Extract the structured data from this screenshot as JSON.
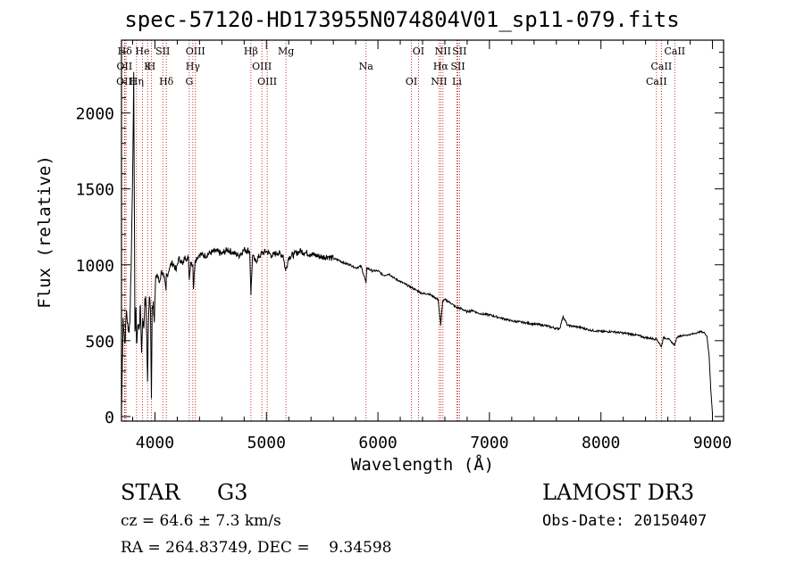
{
  "chart_data": {
    "type": "line",
    "title": "spec-57120-HD173955N074804V01_sp11-079.fits",
    "xlabel": "Wavelength (Å)",
    "ylabel": "Flux (relative)",
    "xlim": [
      3700,
      9100
    ],
    "ylim": [
      -30,
      2480
    ],
    "xticks": [
      4000,
      5000,
      6000,
      7000,
      8000,
      9000
    ],
    "yticks": [
      0,
      500,
      1000,
      1500,
      2000
    ],
    "series": [
      {
        "name": "spectrum",
        "x": [
          3700,
          3715,
          3730,
          3745,
          3760,
          3775,
          3790,
          3800,
          3810,
          3820,
          3830,
          3835,
          3845,
          3860,
          3870,
          3880,
          3890,
          3900,
          3910,
          3920,
          3930,
          3934,
          3940,
          3950,
          3960,
          3968,
          3975,
          3985,
          3995,
          4005,
          4020,
          4040,
          4060,
          4080,
          4100,
          4102,
          4110,
          4130,
          4150,
          4170,
          4190,
          4210,
          4230,
          4250,
          4270,
          4290,
          4300,
          4308,
          4320,
          4340,
          4345,
          4360,
          4380,
          4400,
          4450,
          4500,
          4550,
          4600,
          4650,
          4700,
          4750,
          4800,
          4850,
          4861,
          4875,
          4900,
          4950,
          5000,
          5050,
          5100,
          5150,
          5172,
          5200,
          5250,
          5300,
          5350,
          5400,
          5450,
          5500,
          5550,
          5600,
          5650,
          5700,
          5750,
          5800,
          5850,
          5893,
          5900,
          5950,
          6000,
          6050,
          6100,
          6150,
          6200,
          6250,
          6300,
          6350,
          6400,
          6450,
          6500,
          6540,
          6563,
          6580,
          6600,
          6650,
          6700,
          6750,
          6800,
          6850,
          6900,
          7000,
          7100,
          7200,
          7300,
          7400,
          7500,
          7600,
          7630,
          7660,
          7700,
          7800,
          7900,
          8000,
          8100,
          8200,
          8300,
          8400,
          8500,
          8542,
          8560,
          8600,
          8662,
          8680,
          8700,
          8750,
          8800,
          8850,
          8900,
          8930,
          8950,
          8970,
          8985,
          9000
        ],
        "values": [
          40,
          650,
          480,
          700,
          560,
          620,
          1130,
          1600,
          2270,
          560,
          720,
          480,
          600,
          590,
          730,
          420,
          650,
          580,
          780,
          740,
          360,
          230,
          600,
          790,
          700,
          120,
          720,
          760,
          620,
          900,
          940,
          880,
          960,
          920,
          830,
          940,
          930,
          980,
          1010,
          1000,
          960,
          1040,
          1030,
          1000,
          1060,
          1030,
          1050,
          900,
          1020,
          1000,
          840,
          1030,
          1050,
          1070,
          1060,
          1080,
          1090,
          1070,
          1100,
          1080,
          1060,
          1100,
          1090,
          800,
          1060,
          1020,
          1070,
          1090,
          1060,
          1080,
          1060,
          960,
          1050,
          1070,
          1090,
          1080,
          1070,
          1060,
          1050,
          1055,
          1040,
          1030,
          1010,
          1000,
          980,
          990,
          880,
          980,
          960,
          960,
          930,
          940,
          910,
          890,
          870,
          850,
          830,
          810,
          810,
          790,
          770,
          600,
          760,
          770,
          750,
          720,
          710,
          690,
          700,
          680,
          670,
          650,
          630,
          620,
          610,
          600,
          580,
          580,
          660,
          600,
          590,
          570,
          560,
          560,
          550,
          540,
          520,
          510,
          460,
          520,
          515,
          470,
          520,
          530,
          535,
          540,
          550,
          560,
          550,
          530,
          400,
          180,
          20
        ]
      }
    ],
    "line_marks": [
      {
        "label": "Hδ",
        "wave": 3730
      },
      {
        "label": "OII",
        "wave": 3727
      },
      {
        "label": "OIII",
        "wave": 3741
      },
      {
        "label": "He",
        "wave": 3888
      },
      {
        "label": "K",
        "wave": 3934
      },
      {
        "label": "Hη",
        "wave": 3835
      },
      {
        "label": "SII",
        "wave": 4070
      },
      {
        "label": "H",
        "wave": 3968
      },
      {
        "label": "Hδ",
        "wave": 4102
      },
      {
        "label": "OIII",
        "wave": 4363
      },
      {
        "label": "Hγ",
        "wave": 4340
      },
      {
        "label": "G",
        "wave": 4308
      },
      {
        "label": "Hβ",
        "wave": 4861
      },
      {
        "label": "OIII",
        "wave": 4959
      },
      {
        "label": "OIII",
        "wave": 5007
      },
      {
        "label": "Mg",
        "wave": 5175
      },
      {
        "label": "Na",
        "wave": 5893
      },
      {
        "label": "OI",
        "wave": 6300
      },
      {
        "label": "OI",
        "wave": 6363
      },
      {
        "label": "Hα",
        "wave": 6563
      },
      {
        "label": "NII",
        "wave": 6548
      },
      {
        "label": "NII",
        "wave": 6583
      },
      {
        "label": "SII",
        "wave": 6717
      },
      {
        "label": "Li",
        "wave": 6708
      },
      {
        "label": "SII",
        "wave": 6731
      },
      {
        "label": "CaII",
        "wave": 8542
      },
      {
        "label": "CaII",
        "wave": 8498
      },
      {
        "label": "CaII",
        "wave": 8662
      }
    ]
  },
  "info": {
    "class_type": "STAR",
    "subclass": "G3",
    "survey": "LAMOST DR3",
    "redshift_line": "cz = 64.6 ± 7.3 km/s",
    "obs_date_line": "Obs-Date: 20150407",
    "coords_line": "RA = 264.83749, DEC =    9.34598"
  }
}
